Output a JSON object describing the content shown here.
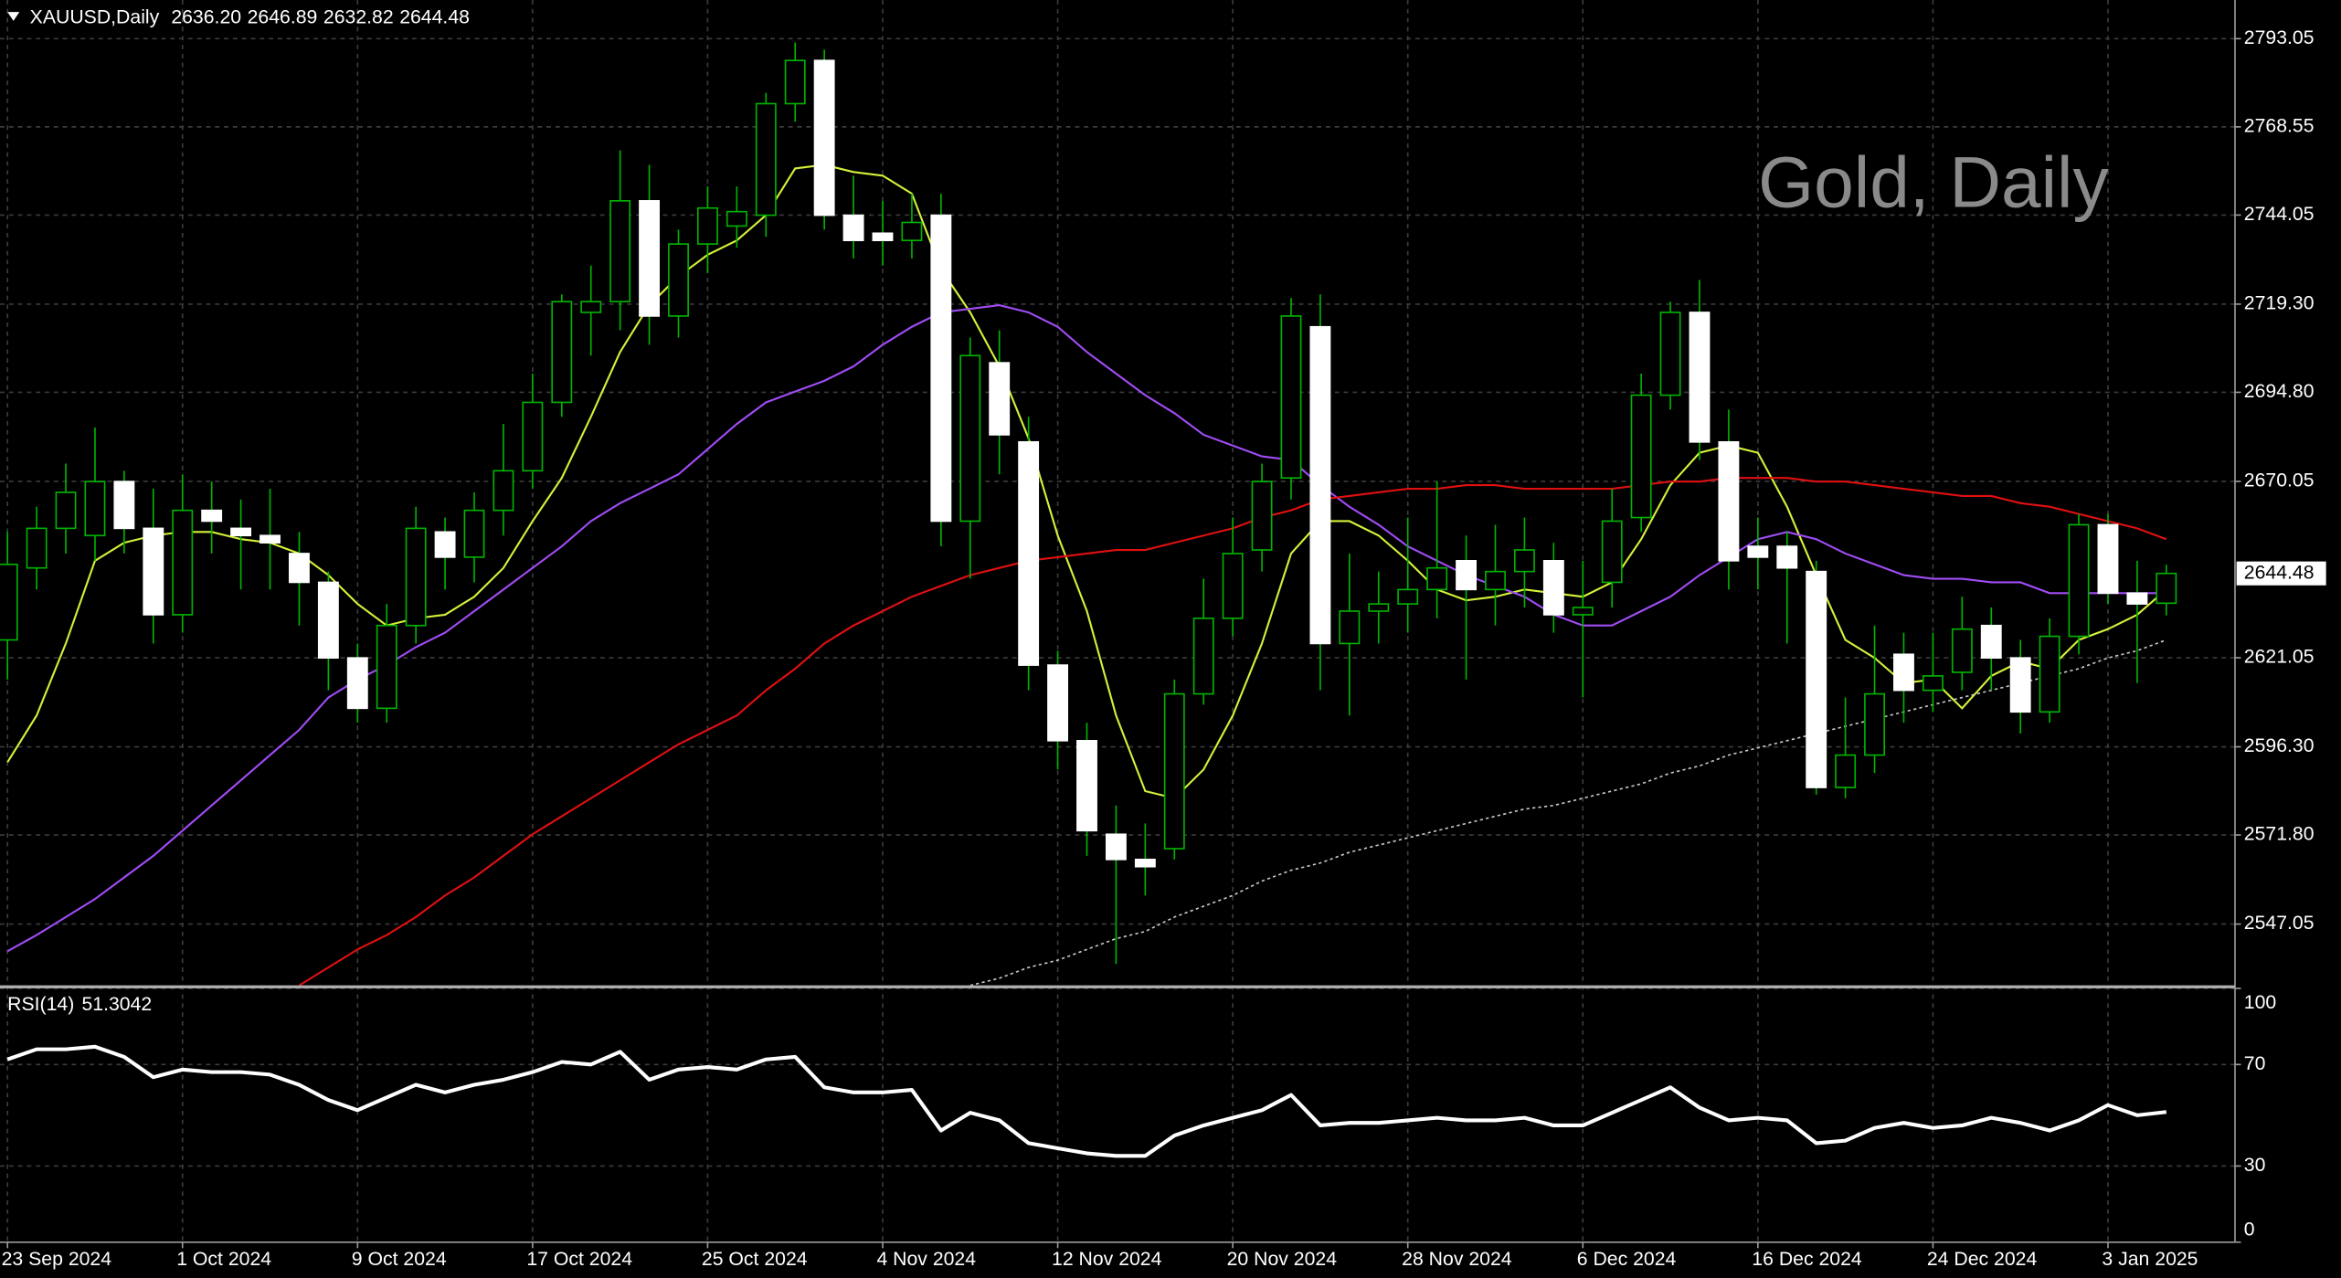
{
  "chart_data": [
    {
      "type": "candlestick",
      "symbol": "XAUUSD,Daily",
      "last_bar_labels": [
        "2636.20",
        "2646.89",
        "2632.82",
        "2644.48"
      ],
      "watermark": "Gold, Daily",
      "categories": [
        "23 Sep 2024",
        null,
        null,
        null,
        null,
        null,
        "1 Oct 2024",
        null,
        null,
        null,
        null,
        null,
        "9 Oct 2024",
        null,
        null,
        null,
        null,
        null,
        "17 Oct 2024",
        null,
        null,
        null,
        null,
        null,
        "25 Oct 2024",
        null,
        null,
        null,
        null,
        null,
        "4 Nov 2024",
        null,
        null,
        null,
        null,
        null,
        "12 Nov 2024",
        null,
        null,
        null,
        null,
        null,
        "20 Nov 2024",
        null,
        null,
        null,
        null,
        null,
        "28 Nov 2024",
        null,
        null,
        null,
        null,
        null,
        "6 Dec 2024",
        null,
        null,
        null,
        null,
        null,
        "16 Dec 2024",
        null,
        null,
        null,
        null,
        null,
        "24 Dec 2024",
        null,
        null,
        null,
        null,
        null,
        "3 Jan 2025",
        null,
        null
      ],
      "open": [
        2626,
        2646,
        2657,
        2655,
        2670,
        2657,
        2633,
        2662,
        2657,
        2655,
        2650,
        2642,
        2621,
        2607,
        2630,
        2656,
        2649,
        2662,
        2673,
        2692,
        2717,
        2720,
        2748,
        2716,
        2736,
        2741,
        2744,
        2775,
        2787,
        2744,
        2739,
        2737,
        2744,
        2659,
        2703,
        2681,
        2619,
        2598,
        2572,
        2565,
        2568,
        2611,
        2632,
        2651,
        2671,
        2713,
        2625,
        2634,
        2636,
        2640,
        2648,
        2640,
        2645,
        2648,
        2633,
        2642,
        2660,
        2694,
        2717,
        2681,
        2652,
        2652,
        2645,
        2585,
        2594,
        2622,
        2612,
        2617,
        2630,
        2621,
        2606,
        2627,
        2658,
        2639,
        2636.2
      ],
      "high": [
        2656,
        2663,
        2675,
        2685,
        2673,
        2668,
        2672,
        2670,
        2665,
        2668,
        2656,
        2645,
        2625,
        2636,
        2663,
        2660,
        2667,
        2686,
        2700,
        2722,
        2730,
        2762,
        2758,
        2740,
        2752,
        2752,
        2778,
        2792,
        2790,
        2755,
        2748,
        2750,
        2750,
        2710,
        2712,
        2688,
        2623,
        2603,
        2580,
        2575,
        2615,
        2643,
        2660,
        2675,
        2721,
        2722,
        2650,
        2645,
        2660,
        2670,
        2655,
        2658,
        2660,
        2653,
        2648,
        2668,
        2700,
        2720,
        2726,
        2690,
        2660,
        2656,
        2648,
        2610,
        2630,
        2628,
        2628,
        2638,
        2635,
        2626,
        2632,
        2661,
        2661,
        2648,
        2646.89
      ],
      "low": [
        2615,
        2640,
        2650,
        2648,
        2650,
        2625,
        2628,
        2650,
        2640,
        2640,
        2630,
        2612,
        2603,
        2603,
        2625,
        2640,
        2642,
        2655,
        2668,
        2688,
        2705,
        2712,
        2708,
        2710,
        2728,
        2735,
        2738,
        2770,
        2740,
        2732,
        2730,
        2732,
        2652,
        2643,
        2672,
        2612,
        2590,
        2566,
        2536,
        2555,
        2565,
        2608,
        2627,
        2645,
        2665,
        2612,
        2605,
        2625,
        2628,
        2632,
        2615,
        2630,
        2635,
        2628,
        2610,
        2635,
        2656,
        2690,
        2676,
        2640,
        2640,
        2625,
        2583,
        2582,
        2589,
        2603,
        2606,
        2612,
        2612,
        2600,
        2603,
        2622,
        2636,
        2614,
        2632.82
      ],
      "close": [
        2647,
        2657,
        2667,
        2670,
        2657,
        2633,
        2662,
        2659,
        2655,
        2653,
        2642,
        2621,
        2607,
        2630,
        2657,
        2649,
        2662,
        2673,
        2692,
        2720,
        2720,
        2748,
        2716,
        2736,
        2746,
        2745,
        2775,
        2787,
        2744,
        2737,
        2737,
        2742,
        2659,
        2705,
        2683,
        2619,
        2598,
        2573,
        2565,
        2563,
        2611,
        2632,
        2650,
        2670,
        2716,
        2625,
        2634,
        2636,
        2640,
        2646,
        2640,
        2645,
        2651,
        2633,
        2635,
        2659,
        2694,
        2717,
        2681,
        2648,
        2649,
        2646,
        2585,
        2594,
        2611,
        2612,
        2616,
        2629,
        2621,
        2606,
        2627,
        2658,
        2639,
        2636,
        2644.48
      ],
      "bull_color": "#000000",
      "bear_color": "#ffffff",
      "wick_color": "#00b400",
      "overlays": [
        {
          "color": "#d4f03a",
          "style": "solid",
          "values": [
            2592,
            2605,
            2625,
            2648,
            2653,
            2655,
            2656,
            2656,
            2654,
            2653,
            2650,
            2644,
            2636,
            2630,
            2632,
            2633,
            2638,
            2646,
            2659,
            2671,
            2688,
            2706,
            2719,
            2727,
            2733,
            2737,
            2744,
            2757,
            2758,
            2756,
            2755,
            2750,
            2729,
            2717,
            2702,
            2682,
            2655,
            2634,
            2605,
            2584,
            2582,
            2590,
            2605,
            2625,
            2650,
            2659,
            2659,
            2655,
            2648,
            2640,
            2637,
            2638,
            2640,
            2639,
            2638,
            2642,
            2654,
            2669,
            2678,
            2680,
            2678,
            2663,
            2644,
            2626,
            2621,
            2614,
            2615,
            2607,
            2616,
            2620,
            2618,
            2626,
            2629,
            2633,
            2640
          ]
        },
        {
          "color": "#a04cf5",
          "style": "solid",
          "values": [
            2539.5,
            2544,
            2549,
            2554,
            2560,
            2566,
            2573,
            2580,
            2587,
            2594,
            2601,
            2610,
            2615,
            2619,
            2624,
            2628,
            2634,
            2640,
            2646,
            2652,
            2659,
            2664,
            2668,
            2672,
            2679,
            2686,
            2692,
            2695,
            2698,
            2702,
            2708,
            2713,
            2717,
            2718,
            2719,
            2717,
            2713,
            2706,
            2700,
            2694,
            2689,
            2683,
            2680,
            2677,
            2676,
            2669,
            2663,
            2658,
            2652,
            2648,
            2644,
            2641,
            2638,
            2633,
            2630,
            2630,
            2634,
            2638,
            2644,
            2649,
            2654,
            2656,
            2654,
            2650,
            2647,
            2644,
            2643,
            2643,
            2642,
            2642,
            2639,
            2639,
            2639,
            2639,
            2639
          ]
        },
        {
          "color": "#e01010",
          "style": "solid",
          "values": [
            null,
            null,
            null,
            null,
            null,
            null,
            null,
            null,
            null,
            null,
            2530,
            2535,
            2540,
            2544,
            2549,
            2555,
            2560,
            2566,
            2572,
            2577,
            2582,
            2587,
            2592,
            2597,
            2601,
            2605,
            2612,
            2618,
            2625,
            2630,
            2634,
            2638,
            2641,
            2644,
            2646,
            2648,
            2649,
            2650,
            2651,
            2651,
            2653,
            2655,
            2657,
            2660,
            2662,
            2665,
            2666,
            2667,
            2668,
            2668,
            2669,
            2669,
            2668,
            2668,
            2668,
            2668,
            2669,
            2670,
            2670,
            2671,
            2671,
            2671,
            2670,
            2670,
            2669,
            2668,
            2667,
            2666,
            2666,
            2664,
            2663,
            2661,
            2659,
            2657,
            2654
          ]
        },
        {
          "color": "#c8c8c8",
          "style": "dotted",
          "values": [
            null,
            null,
            null,
            null,
            null,
            null,
            null,
            null,
            null,
            null,
            null,
            null,
            null,
            null,
            null,
            null,
            null,
            null,
            null,
            null,
            null,
            null,
            null,
            null,
            null,
            null,
            null,
            null,
            null,
            null,
            null,
            null,
            null,
            2530,
            2532,
            2535,
            2537,
            2540,
            2543,
            2545,
            2549,
            2552,
            2555,
            2559,
            2562,
            2564,
            2567,
            2569,
            2571,
            2573,
            2575,
            2577,
            2579,
            2580,
            2582,
            2584,
            2586,
            2589,
            2591,
            2594,
            2596,
            2598,
            2600,
            2602,
            2604,
            2606,
            2608,
            2610,
            2612,
            2614,
            2616,
            2618,
            2621,
            2623,
            2626
          ]
        }
      ],
      "ylim": [
        2529.6,
        2803.8
      ],
      "yticks": [
        2793.05,
        2768.55,
        2744.05,
        {
          "value": 2719.3,
          "label": "2719.30"
        },
        {
          "value": 2694.8,
          "label": "2694.80"
        },
        2670.05,
        2621.05,
        {
          "value": 2596.3,
          "label": "2596.30"
        },
        {
          "value": 2571.8,
          "label": "2571.80"
        },
        2547.05
      ],
      "grid": true
    },
    {
      "type": "line",
      "label": "RSI(14)",
      "color": "#ffffff",
      "values": [
        72,
        76,
        76,
        77,
        73,
        65,
        68,
        67,
        67,
        66,
        62,
        56,
        52,
        57,
        62,
        59,
        62,
        64,
        67,
        71,
        70,
        75,
        64,
        68,
        69,
        68,
        72,
        73,
        61,
        59,
        59,
        60,
        44,
        51,
        48,
        39,
        37,
        35,
        34,
        34,
        42,
        46,
        49,
        52,
        58,
        46,
        47,
        47,
        48,
        49,
        48,
        48,
        49,
        46,
        46,
        51,
        56,
        61,
        53,
        48,
        49,
        48,
        39,
        40,
        45,
        47,
        45,
        46,
        49,
        47,
        44,
        48,
        54,
        50,
        51.3042
      ],
      "ylim": [
        0,
        100
      ],
      "yticks": [
        0,
        30,
        70,
        100
      ]
    }
  ]
}
